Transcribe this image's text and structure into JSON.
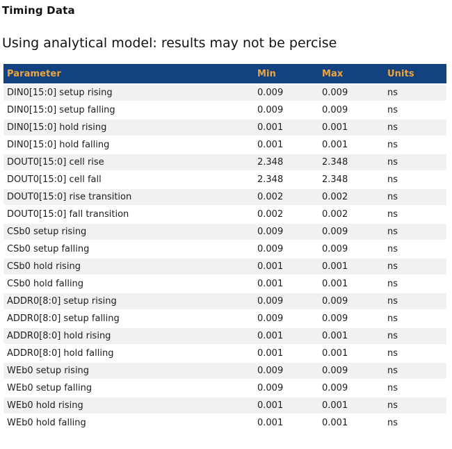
{
  "page": {
    "title": "Timing Data",
    "subtitle": "Using analytical model: results may not be percise"
  },
  "table": {
    "columns": [
      "Parameter",
      "Min",
      "Max",
      "Units"
    ],
    "rows": [
      {
        "parameter": "DIN0[15:0] setup rising",
        "min": "0.009",
        "max": "0.009",
        "units": "ns"
      },
      {
        "parameter": "DIN0[15:0] setup falling",
        "min": "0.009",
        "max": "0.009",
        "units": "ns"
      },
      {
        "parameter": "DIN0[15:0] hold rising",
        "min": "0.001",
        "max": "0.001",
        "units": "ns"
      },
      {
        "parameter": "DIN0[15:0] hold falling",
        "min": "0.001",
        "max": "0.001",
        "units": "ns"
      },
      {
        "parameter": "DOUT0[15:0] cell rise",
        "min": "2.348",
        "max": "2.348",
        "units": "ns"
      },
      {
        "parameter": "DOUT0[15:0] cell fall",
        "min": "2.348",
        "max": "2.348",
        "units": "ns"
      },
      {
        "parameter": "DOUT0[15:0] rise transition",
        "min": "0.002",
        "max": "0.002",
        "units": "ns"
      },
      {
        "parameter": "DOUT0[15:0] fall transition",
        "min": "0.002",
        "max": "0.002",
        "units": "ns"
      },
      {
        "parameter": "CSb0 setup rising",
        "min": "0.009",
        "max": "0.009",
        "units": "ns"
      },
      {
        "parameter": "CSb0 setup falling",
        "min": "0.009",
        "max": "0.009",
        "units": "ns"
      },
      {
        "parameter": "CSb0 hold rising",
        "min": "0.001",
        "max": "0.001",
        "units": "ns"
      },
      {
        "parameter": "CSb0 hold falling",
        "min": "0.001",
        "max": "0.001",
        "units": "ns"
      },
      {
        "parameter": "ADDR0[8:0] setup rising",
        "min": "0.009",
        "max": "0.009",
        "units": "ns"
      },
      {
        "parameter": "ADDR0[8:0] setup falling",
        "min": "0.009",
        "max": "0.009",
        "units": "ns"
      },
      {
        "parameter": "ADDR0[8:0] hold rising",
        "min": "0.001",
        "max": "0.001",
        "units": "ns"
      },
      {
        "parameter": "ADDR0[8:0] hold falling",
        "min": "0.001",
        "max": "0.001",
        "units": "ns"
      },
      {
        "parameter": "WEb0 setup rising",
        "min": "0.009",
        "max": "0.009",
        "units": "ns"
      },
      {
        "parameter": "WEb0 setup falling",
        "min": "0.009",
        "max": "0.009",
        "units": "ns"
      },
      {
        "parameter": "WEb0 hold rising",
        "min": "0.001",
        "max": "0.001",
        "units": "ns"
      },
      {
        "parameter": "WEb0 hold falling",
        "min": "0.001",
        "max": "0.001",
        "units": "ns"
      }
    ]
  },
  "colors": {
    "header_bg": "#124380",
    "header_text": "#f0a53c",
    "row_alt_bg": "#f0f1f1"
  }
}
